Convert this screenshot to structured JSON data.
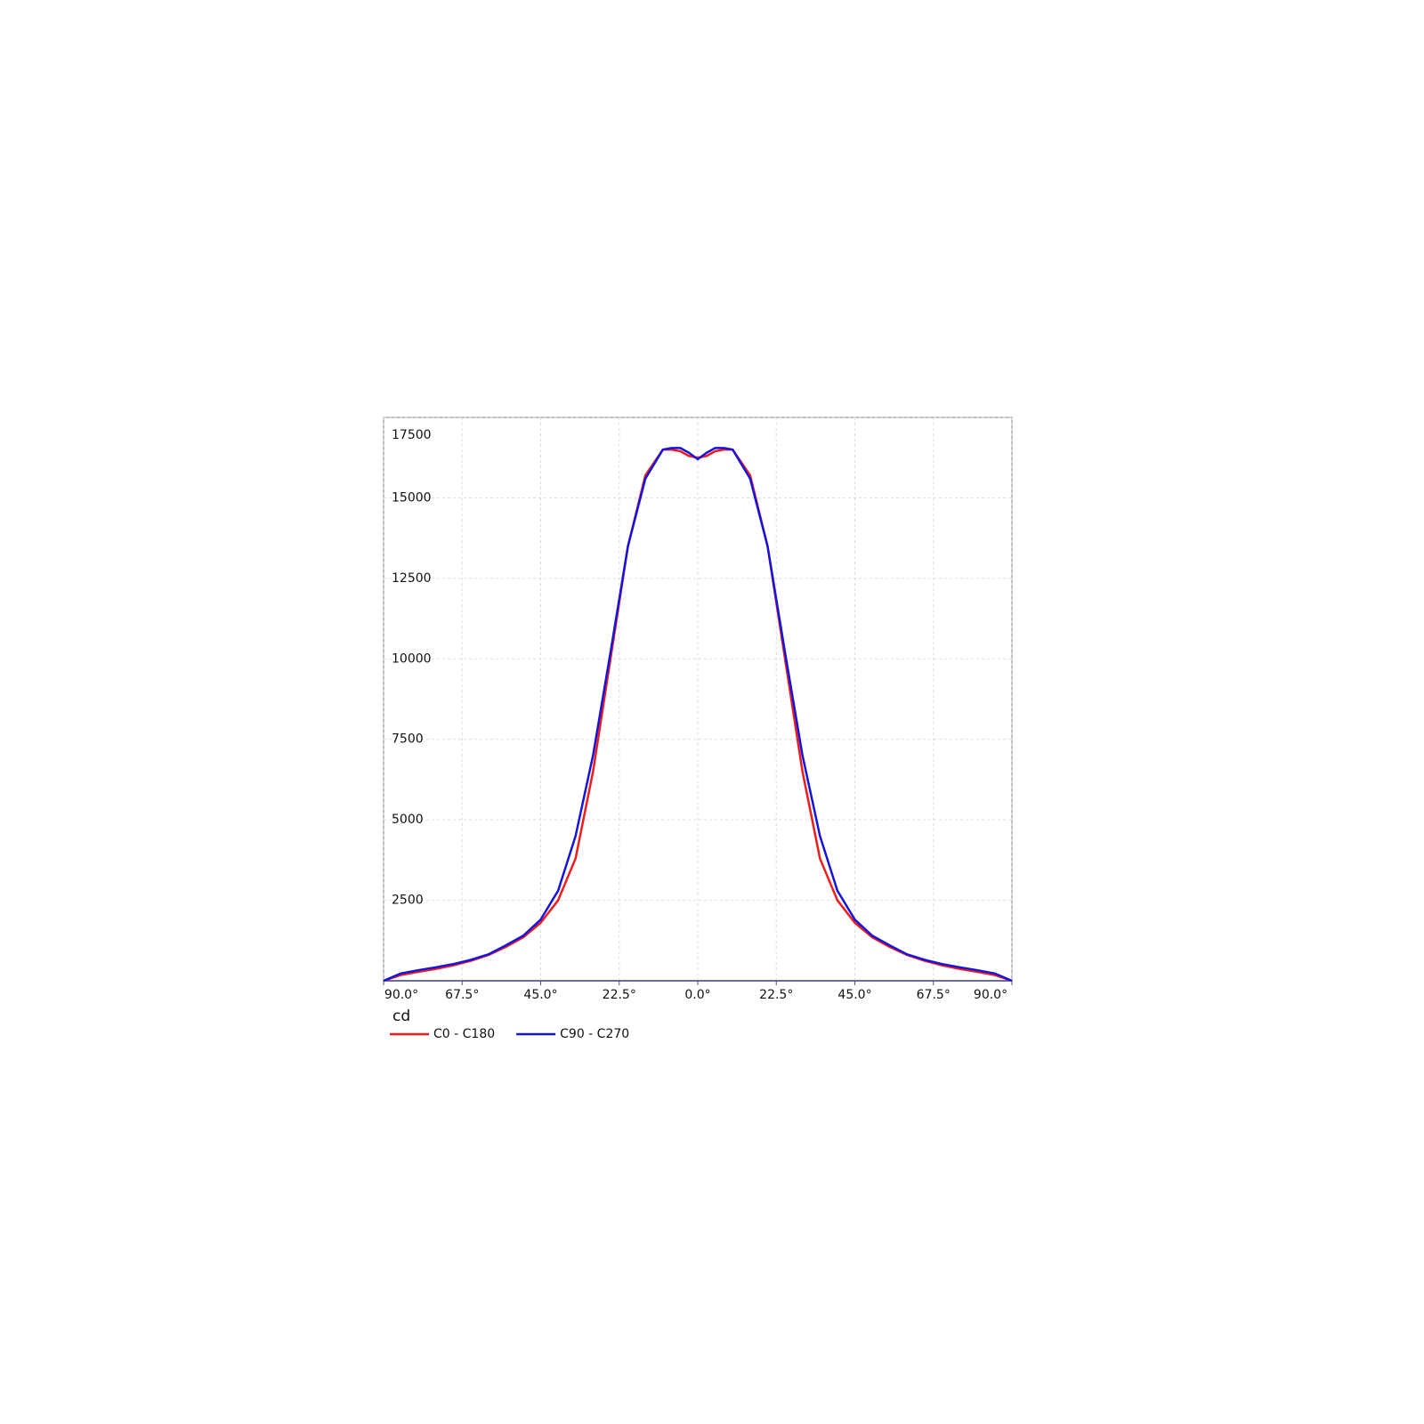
{
  "chart_data": {
    "type": "line",
    "y_label": "cd",
    "x": [
      -90,
      -85,
      -80,
      -75,
      -70,
      -65,
      -60,
      -55,
      -50,
      -45,
      -40,
      -35,
      -30,
      -25,
      -20,
      -15,
      -10,
      -7.5,
      -5,
      -2.5,
      0,
      2.5,
      5,
      7.5,
      10,
      15,
      20,
      25,
      30,
      35,
      40,
      45,
      50,
      55,
      60,
      65,
      70,
      75,
      80,
      85,
      90
    ],
    "series": [
      {
        "name": "C0 - C180",
        "color": "#f01c1c",
        "values": [
          0,
          180,
          280,
          370,
          480,
          620,
          800,
          1050,
          1350,
          1800,
          2500,
          3800,
          6500,
          10000,
          13500,
          15700,
          16500,
          16500,
          16450,
          16300,
          16250,
          16300,
          16450,
          16500,
          16500,
          15700,
          13500,
          10000,
          6500,
          3800,
          2500,
          1800,
          1350,
          1050,
          800,
          620,
          480,
          370,
          280,
          180,
          0
        ]
      },
      {
        "name": "C90 - C270",
        "color": "#1414dc",
        "values": [
          0,
          230,
          330,
          420,
          520,
          650,
          820,
          1100,
          1400,
          1900,
          2800,
          4500,
          7000,
          10200,
          13500,
          15600,
          16500,
          16550,
          16550,
          16400,
          16200,
          16400,
          16550,
          16550,
          16500,
          15600,
          13500,
          10200,
          7000,
          4500,
          2800,
          1900,
          1400,
          1100,
          820,
          650,
          520,
          420,
          330,
          230,
          0
        ]
      }
    ],
    "xlim": [
      -90,
      90
    ],
    "xticks": [
      {
        "value": -90,
        "label": "90.0°"
      },
      {
        "value": -67.5,
        "label": "67.5°"
      },
      {
        "value": -45,
        "label": "45.0°"
      },
      {
        "value": -22.5,
        "label": "22.5°"
      },
      {
        "value": 0,
        "label": "0.0°"
      },
      {
        "value": 22.5,
        "label": "22.5°"
      },
      {
        "value": 45,
        "label": "45.0°"
      },
      {
        "value": 67.5,
        "label": "67.5°"
      },
      {
        "value": 90,
        "label": "90.0°"
      }
    ],
    "ylim": [
      0,
      17500
    ],
    "yticks": [
      2500,
      5000,
      7500,
      10000,
      12500,
      15000,
      17500
    ],
    "grid": true,
    "legend": "bottom-left"
  }
}
